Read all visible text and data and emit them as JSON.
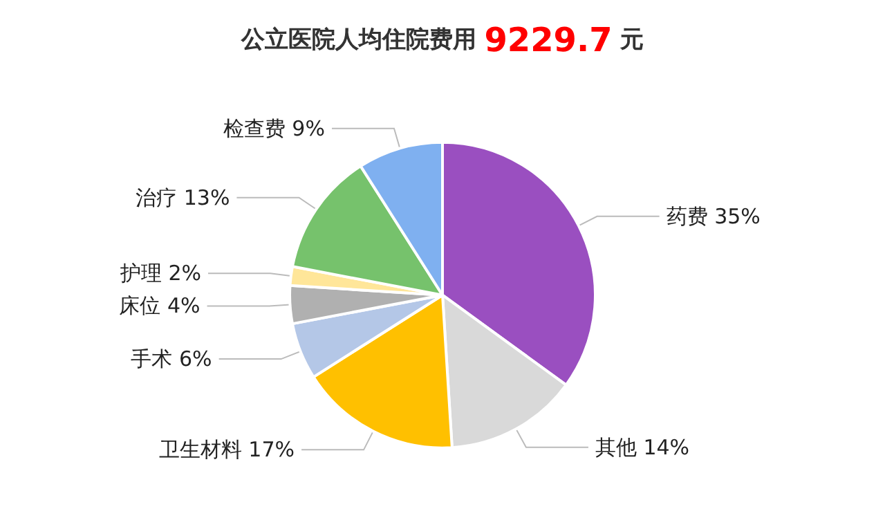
{
  "chart_data": {
    "type": "pie",
    "title": "公立医院人均住院费用 9229.7 元",
    "categories": [
      "药费",
      "其他",
      "卫生材料",
      "手术",
      "床位",
      "护理",
      "治疗",
      "检查费"
    ],
    "values": [
      35,
      14,
      17,
      6,
      4,
      2,
      13,
      9
    ],
    "value_labels": [
      "35%",
      "14%",
      "17%",
      "6%",
      "4%",
      "2%",
      "13%",
      "9%"
    ],
    "colors": [
      "#9a4fc0",
      "#d9d9d9",
      "#ffc000",
      "#b4c7e7",
      "#b0b0b0",
      "#ffe699",
      "#76c26c",
      "#7fb0f0"
    ],
    "legend": false
  }
}
